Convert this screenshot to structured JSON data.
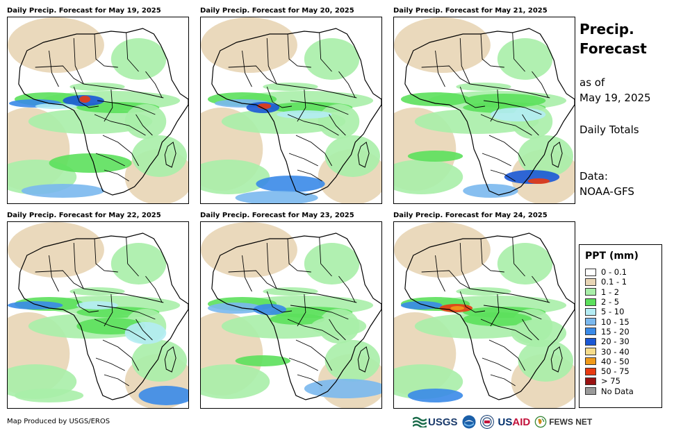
{
  "panels": [
    {
      "title": "Daily Precip. Forecast for May 19, 2025",
      "day": 1
    },
    {
      "title": "Daily Precip. Forecast for May 20, 2025",
      "day": 2
    },
    {
      "title": "Daily Precip. Forecast for May 21, 2025",
      "day": 3
    },
    {
      "title": "Daily Precip. Forecast for May 22, 2025",
      "day": 4
    },
    {
      "title": "Daily Precip. Forecast for May 23, 2025",
      "day": 5
    },
    {
      "title": "Daily Precip. Forecast for May 24, 2025",
      "day": 6
    }
  ],
  "sidebar": {
    "title_line1": "Precip.",
    "title_line2": "Forecast",
    "asof_line1": "as of",
    "asof_line2": "May 19, 2025",
    "totals": "Daily Totals",
    "data_line1": "Data:",
    "data_line2": "NOAA-GFS"
  },
  "legend": {
    "title": "PPT (mm)",
    "items": [
      {
        "label": "0 - 0.1",
        "color": "#ffffff"
      },
      {
        "label": "0.1 - 1",
        "color": "#e8d5b5"
      },
      {
        "label": "1 - 2",
        "color": "#a8eea8"
      },
      {
        "label": "2 - 5",
        "color": "#5ce05c"
      },
      {
        "label": "5 - 10",
        "color": "#b4ecf4"
      },
      {
        "label": "10 - 15",
        "color": "#7ab8ee"
      },
      {
        "label": "15 - 20",
        "color": "#3a8ae8"
      },
      {
        "label": "20 - 30",
        "color": "#1a58d6"
      },
      {
        "label": "30 - 40",
        "color": "#f6dc8a"
      },
      {
        "label": "40 - 50",
        "color": "#f09a1a"
      },
      {
        "label": "50 - 75",
        "color": "#e83a12"
      },
      {
        "label": "> 75",
        "color": "#9a1212"
      },
      {
        "label": "No Data",
        "color": "#9a9a9a"
      }
    ]
  },
  "credit": "Map Produced by USGS/EROS",
  "logos": {
    "usgs": "USGS",
    "usaid_us": "US",
    "usaid_aid": "AID",
    "fews": "FEWS NET"
  }
}
